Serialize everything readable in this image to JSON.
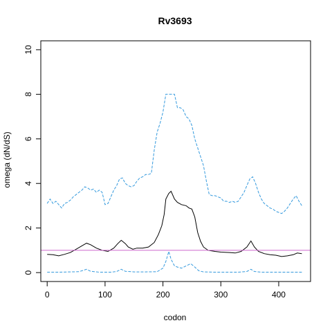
{
  "chart_data": {
    "type": "line",
    "title": "Rv3693",
    "xlabel": "codon",
    "ylabel": "omega (dN/dS)",
    "xlim": [
      -11,
      455
    ],
    "ylim": [
      -0.4,
      10.4
    ],
    "x_ticks": [
      0,
      100,
      200,
      300,
      400
    ],
    "y_ticks": [
      0,
      2,
      4,
      6,
      8,
      10
    ],
    "grid": false,
    "legend": "none",
    "reference_line": {
      "y": 1,
      "color": "#cc66cc"
    },
    "series": [
      {
        "style": "dashed",
        "color": "#3399dd",
        "points": [
          [
            0,
            3.1
          ],
          [
            5,
            3.3
          ],
          [
            10,
            3.1
          ],
          [
            15,
            3.2
          ],
          [
            20,
            3.05
          ],
          [
            25,
            2.9
          ],
          [
            30,
            3.1
          ],
          [
            35,
            3.15
          ],
          [
            40,
            3.25
          ],
          [
            45,
            3.4
          ],
          [
            50,
            3.5
          ],
          [
            55,
            3.6
          ],
          [
            60,
            3.7
          ],
          [
            65,
            3.85
          ],
          [
            70,
            3.8
          ],
          [
            75,
            3.7
          ],
          [
            80,
            3.75
          ],
          [
            85,
            3.6
          ],
          [
            90,
            3.7
          ],
          [
            95,
            3.6
          ],
          [
            100,
            3.05
          ],
          [
            105,
            3.1
          ],
          [
            110,
            3.4
          ],
          [
            115,
            3.7
          ],
          [
            120,
            3.9
          ],
          [
            125,
            4.2
          ],
          [
            130,
            4.25
          ],
          [
            135,
            4.0
          ],
          [
            140,
            3.9
          ],
          [
            145,
            3.85
          ],
          [
            150,
            3.9
          ],
          [
            155,
            4.1
          ],
          [
            160,
            4.25
          ],
          [
            165,
            4.3
          ],
          [
            170,
            4.4
          ],
          [
            175,
            4.4
          ],
          [
            180,
            4.45
          ],
          [
            185,
            5.5
          ],
          [
            190,
            6.3
          ],
          [
            195,
            6.7
          ],
          [
            200,
            7.2
          ],
          [
            205,
            8.0
          ],
          [
            210,
            8.0
          ],
          [
            215,
            8.0
          ],
          [
            220,
            8.0
          ],
          [
            225,
            7.4
          ],
          [
            230,
            7.4
          ],
          [
            235,
            7.3
          ],
          [
            240,
            7.0
          ],
          [
            245,
            6.9
          ],
          [
            250,
            6.6
          ],
          [
            255,
            6.0
          ],
          [
            260,
            5.6
          ],
          [
            265,
            5.2
          ],
          [
            270,
            4.8
          ],
          [
            275,
            4.1
          ],
          [
            280,
            3.5
          ],
          [
            285,
            3.45
          ],
          [
            290,
            3.45
          ],
          [
            295,
            3.4
          ],
          [
            300,
            3.35
          ],
          [
            305,
            3.2
          ],
          [
            310,
            3.2
          ],
          [
            315,
            3.15
          ],
          [
            320,
            3.2
          ],
          [
            325,
            3.15
          ],
          [
            330,
            3.2
          ],
          [
            335,
            3.4
          ],
          [
            340,
            3.6
          ],
          [
            345,
            3.9
          ],
          [
            350,
            4.2
          ],
          [
            355,
            4.3
          ],
          [
            360,
            4.0
          ],
          [
            365,
            3.6
          ],
          [
            370,
            3.3
          ],
          [
            375,
            3.1
          ],
          [
            380,
            3.0
          ],
          [
            385,
            2.9
          ],
          [
            390,
            2.85
          ],
          [
            395,
            2.75
          ],
          [
            400,
            2.7
          ],
          [
            405,
            2.65
          ],
          [
            410,
            2.75
          ],
          [
            415,
            2.9
          ],
          [
            420,
            3.1
          ],
          [
            425,
            3.3
          ],
          [
            430,
            3.45
          ],
          [
            435,
            3.2
          ],
          [
            440,
            3.0
          ]
        ]
      },
      {
        "style": "solid",
        "color": "#000000",
        "points": [
          [
            0,
            0.82
          ],
          [
            10,
            0.8
          ],
          [
            20,
            0.75
          ],
          [
            30,
            0.82
          ],
          [
            40,
            0.9
          ],
          [
            50,
            1.05
          ],
          [
            60,
            1.2
          ],
          [
            68,
            1.32
          ],
          [
            75,
            1.25
          ],
          [
            85,
            1.1
          ],
          [
            95,
            1.0
          ],
          [
            105,
            0.95
          ],
          [
            115,
            1.1
          ],
          [
            122,
            1.3
          ],
          [
            128,
            1.45
          ],
          [
            135,
            1.3
          ],
          [
            140,
            1.15
          ],
          [
            148,
            1.05
          ],
          [
            155,
            1.1
          ],
          [
            165,
            1.1
          ],
          [
            175,
            1.15
          ],
          [
            185,
            1.35
          ],
          [
            192,
            1.7
          ],
          [
            198,
            2.1
          ],
          [
            202,
            2.6
          ],
          [
            205,
            3.3
          ],
          [
            210,
            3.55
          ],
          [
            214,
            3.65
          ],
          [
            220,
            3.3
          ],
          [
            225,
            3.15
          ],
          [
            232,
            3.05
          ],
          [
            240,
            3.0
          ],
          [
            245,
            2.9
          ],
          [
            250,
            2.85
          ],
          [
            255,
            2.5
          ],
          [
            260,
            1.8
          ],
          [
            265,
            1.4
          ],
          [
            270,
            1.15
          ],
          [
            278,
            1.0
          ],
          [
            290,
            0.95
          ],
          [
            300,
            0.92
          ],
          [
            315,
            0.9
          ],
          [
            325,
            0.88
          ],
          [
            335,
            0.95
          ],
          [
            345,
            1.15
          ],
          [
            352,
            1.42
          ],
          [
            358,
            1.15
          ],
          [
            365,
            0.95
          ],
          [
            375,
            0.85
          ],
          [
            385,
            0.8
          ],
          [
            395,
            0.78
          ],
          [
            405,
            0.72
          ],
          [
            415,
            0.75
          ],
          [
            425,
            0.8
          ],
          [
            432,
            0.88
          ],
          [
            440,
            0.85
          ]
        ]
      },
      {
        "style": "dashed",
        "color": "#3399dd",
        "points": [
          [
            0,
            0.02
          ],
          [
            20,
            0.02
          ],
          [
            40,
            0.03
          ],
          [
            55,
            0.04
          ],
          [
            62,
            0.1
          ],
          [
            68,
            0.15
          ],
          [
            75,
            0.06
          ],
          [
            90,
            0.02
          ],
          [
            110,
            0.02
          ],
          [
            120,
            0.05
          ],
          [
            128,
            0.15
          ],
          [
            135,
            0.06
          ],
          [
            150,
            0.03
          ],
          [
            170,
            0.03
          ],
          [
            190,
            0.04
          ],
          [
            200,
            0.2
          ],
          [
            205,
            0.5
          ],
          [
            210,
            0.95
          ],
          [
            214,
            0.6
          ],
          [
            220,
            0.3
          ],
          [
            225,
            0.25
          ],
          [
            232,
            0.2
          ],
          [
            240,
            0.3
          ],
          [
            248,
            0.4
          ],
          [
            255,
            0.25
          ],
          [
            262,
            0.08
          ],
          [
            270,
            0.03
          ],
          [
            290,
            0.02
          ],
          [
            330,
            0.02
          ],
          [
            345,
            0.05
          ],
          [
            352,
            0.15
          ],
          [
            358,
            0.05
          ],
          [
            370,
            0.02
          ],
          [
            400,
            0.02
          ],
          [
            420,
            0.02
          ],
          [
            440,
            0.02
          ]
        ]
      }
    ]
  }
}
